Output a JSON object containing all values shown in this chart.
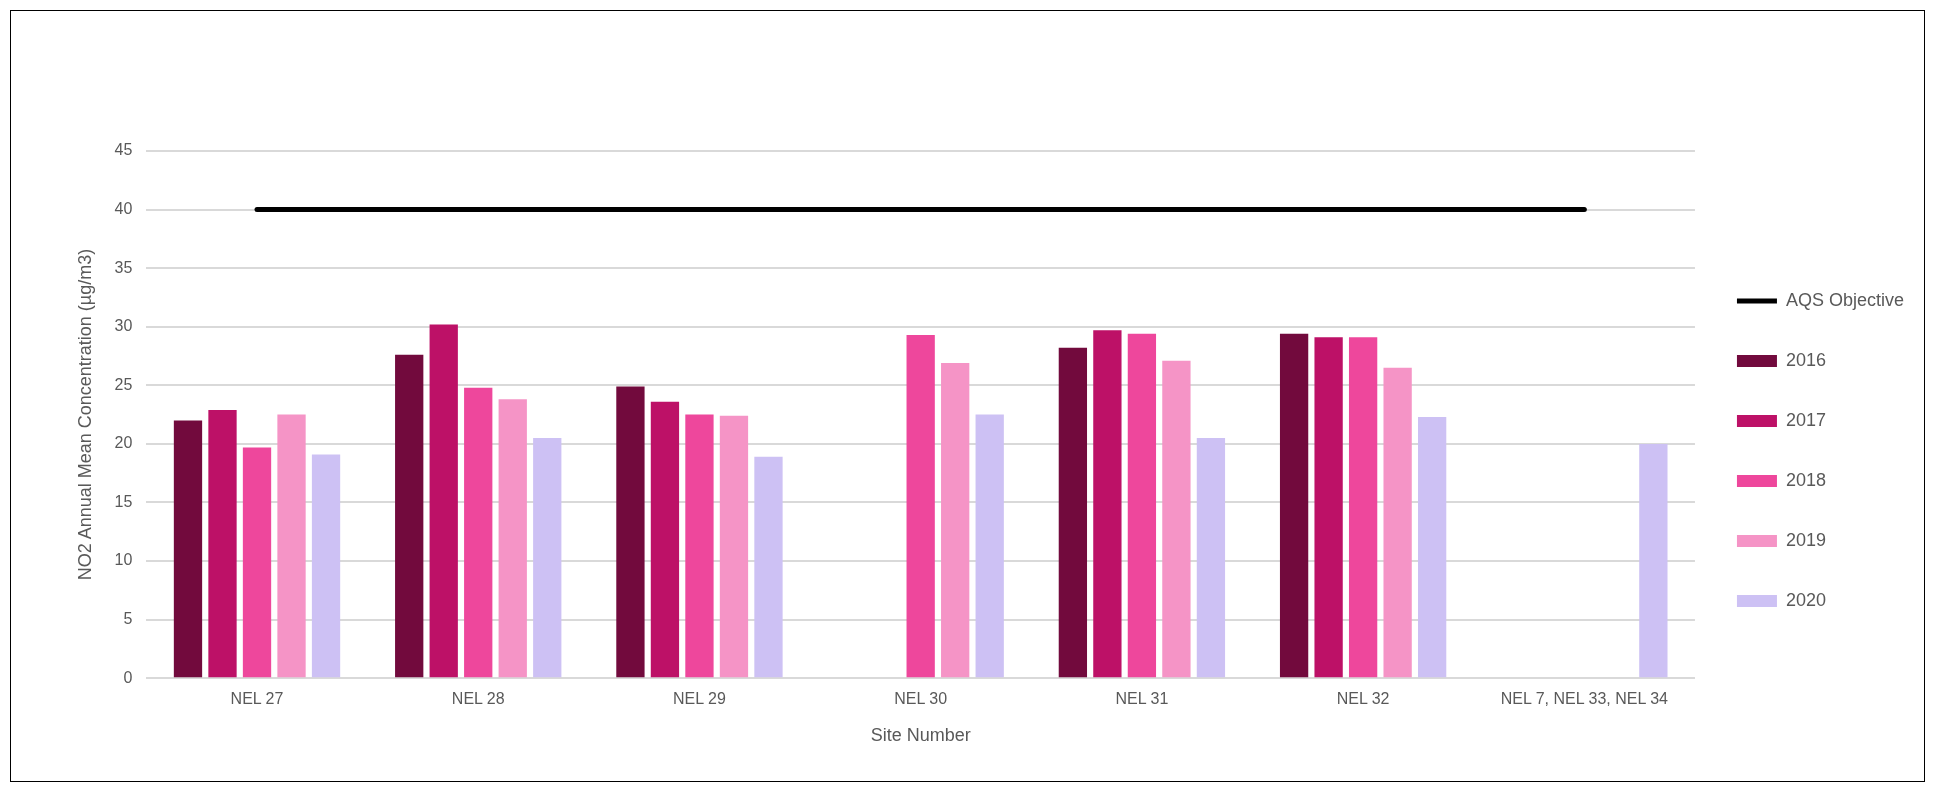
{
  "chart_data": {
    "type": "bar",
    "xlabel": "Site Number",
    "ylabel": "NO2 Annual Mean Concentration (µg/m3)",
    "categories": [
      "NEL 27",
      "NEL 28",
      "NEL 29",
      "NEL 30",
      "NEL 31",
      "NEL 32",
      "NEL 7, NEL 33, NEL 34"
    ],
    "series": [
      {
        "name": "2016",
        "color": "#720a3d",
        "values": [
          22.0,
          27.6,
          24.9,
          null,
          28.2,
          29.4,
          null
        ]
      },
      {
        "name": "2017",
        "color": "#bd1167",
        "values": [
          22.9,
          30.2,
          23.6,
          null,
          29.7,
          29.1,
          null
        ]
      },
      {
        "name": "2018",
        "color": "#ee479c",
        "values": [
          19.7,
          24.8,
          22.5,
          29.3,
          29.4,
          29.1,
          null
        ]
      },
      {
        "name": "2019",
        "color": "#f594c6",
        "values": [
          22.5,
          23.8,
          22.4,
          26.9,
          27.1,
          26.5,
          null
        ]
      },
      {
        "name": "2020",
        "color": "#cdc1f4",
        "values": [
          19.1,
          20.5,
          18.9,
          22.5,
          20.5,
          22.3,
          20.0
        ]
      },
      {
        "name": "AQS Objective",
        "type": "line",
        "color": "#000000",
        "values": [
          40,
          40,
          40,
          40,
          40,
          40,
          40
        ]
      }
    ],
    "ylim": [
      0,
      45
    ],
    "yticks": [
      0,
      5,
      10,
      15,
      20,
      25,
      30,
      35,
      40,
      45
    ],
    "grid": "y",
    "legend": "right",
    "marker": "none"
  }
}
